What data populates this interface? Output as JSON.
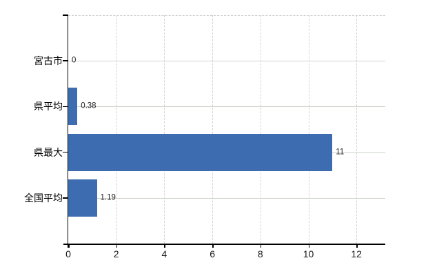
{
  "chart_data": {
    "type": "bar",
    "orientation": "horizontal",
    "title": "",
    "subtitle": "",
    "categories": [
      "宮古市",
      "県平均",
      "県最大",
      "全国平均"
    ],
    "values": [
      0,
      0.38,
      11,
      1.19
    ],
    "value_labels": [
      "0",
      "0.38",
      "11",
      "1.19"
    ],
    "series": [
      {
        "name": "",
        "values": [
          0,
          0.38,
          11,
          1.19
        ]
      }
    ],
    "xlabel": "",
    "ylabel": "",
    "xlim": [
      0,
      13.2
    ],
    "xticks": [
      0,
      2,
      4,
      6,
      8,
      10,
      12
    ],
    "xtick_labels": [
      "0",
      "2",
      "4",
      "6",
      "8",
      "10",
      "12"
    ],
    "legend": null,
    "grid": {
      "vertical_lines": "dashed",
      "horizontal_lines": "solid",
      "plot_top_border": "dashed",
      "right_border": "none"
    },
    "colors": {
      "bar": "#3d6db0",
      "axis": "#000000",
      "category_text": "#000000",
      "tick_text": "#1a1a1a",
      "value_text": "#222222",
      "grid_vertical": "#d8cfd6",
      "grid_horizontal": "#cdd4cb",
      "plot_top_border": "#cfcfcf",
      "background": "#ffffff"
    }
  }
}
